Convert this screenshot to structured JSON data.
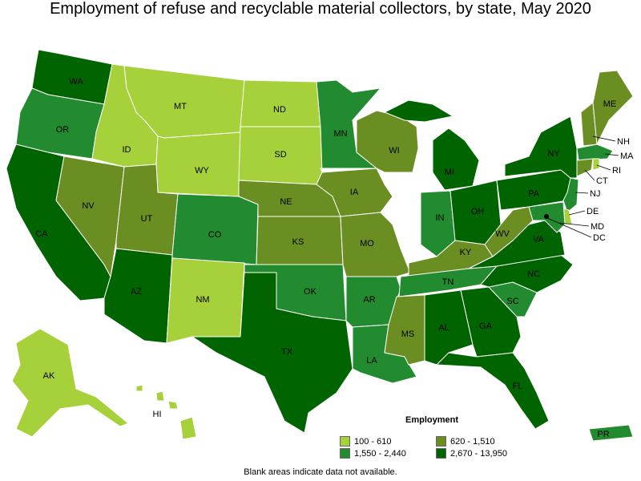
{
  "title": "Employment of refuse and recyclable material collectors, by state, May 2020",
  "legend": {
    "title": "Employment",
    "items": [
      {
        "label": "100 - 610",
        "color": "#a6d13a"
      },
      {
        "label": "620 - 1,510",
        "color": "#6b8e23"
      },
      {
        "label": "1,550 - 2,440",
        "color": "#228b2f"
      },
      {
        "label": "2,670 - 13,950",
        "color": "#006400"
      }
    ]
  },
  "note": "Blank areas indicate data not available.",
  "blank_color": "#ffffff",
  "states": {
    "WA": "#006400",
    "OR": "#228b2f",
    "CA": "#006400",
    "NV": "#6b8e23",
    "ID": "#a6d13a",
    "MT": "#a6d13a",
    "WY": "#a6d13a",
    "UT": "#6b8e23",
    "AZ": "#006400",
    "CO": "#228b2f",
    "NM": "#a6d13a",
    "ND": "#a6d13a",
    "SD": "#a6d13a",
    "NE": "#6b8e23",
    "KS": "#6b8e23",
    "OK": "#228b2f",
    "TX": "#006400",
    "MN": "#228b2f",
    "IA": "#6b8e23",
    "MO": "#6b8e23",
    "AR": "#228b2f",
    "LA": "#228b2f",
    "WI": "#6b8e23",
    "IL": "#ffffff",
    "MI": "#006400",
    "IN": "#228b2f",
    "OH": "#006400",
    "KY": "#6b8e23",
    "TN": "#228b2f",
    "MS": "#6b8e23",
    "AL": "#006400",
    "GA": "#006400",
    "FL": "#006400",
    "SC": "#228b2f",
    "NC": "#006400",
    "VA": "#006400",
    "WV": "#6b8e23",
    "PA": "#006400",
    "NY": "#006400",
    "ME": "#6b8e23",
    "NH": "#6b8e23",
    "VT": "#ffffff",
    "MA": "#228b2f",
    "RI": "#a6d13a",
    "CT": "#6b8e23",
    "NJ": "#228b2f",
    "DE": "#a6d13a",
    "MD": "#228b2f",
    "DC": "#000000",
    "AK": "#a6d13a",
    "HI": "#a6d13a",
    "PR": "#228b2f"
  },
  "labels": {
    "WA": "WA",
    "OR": "OR",
    "CA": "CA",
    "NV": "NV",
    "ID": "ID",
    "MT": "MT",
    "WY": "WY",
    "UT": "UT",
    "AZ": "AZ",
    "CO": "CO",
    "NM": "NM",
    "ND": "ND",
    "SD": "SD",
    "NE": "NE",
    "KS": "KS",
    "OK": "OK",
    "TX": "TX",
    "MN": "MN",
    "IA": "IA",
    "MO": "MO",
    "AR": "AR",
    "LA": "LA",
    "WI": "WI",
    "MI": "MI",
    "IN": "IN",
    "OH": "OH",
    "KY": "KY",
    "TN": "TN",
    "MS": "MS",
    "AL": "AL",
    "GA": "GA",
    "FL": "FL",
    "SC": "SC",
    "NC": "NC",
    "VA": "VA",
    "WV": "WV",
    "PA": "PA",
    "NY": "NY",
    "ME": "ME",
    "NH": "NH",
    "MA": "MA",
    "RI": "RI",
    "CT": "CT",
    "NJ": "NJ",
    "DE": "DE",
    "MD": "MD",
    "DC": "DC",
    "AK": "AK",
    "HI": "HI",
    "PR": "PR"
  }
}
